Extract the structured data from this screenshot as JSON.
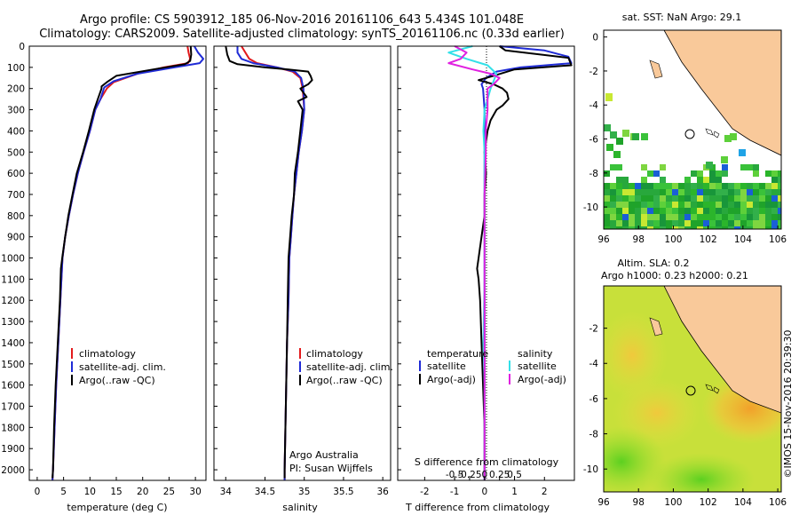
{
  "titles": {
    "line1": "Argo profile: CS 5903912_185 06-Nov-2016 20161106_643 5.434S 101.048E",
    "line2": "Climatology: CARS2009. Satellite-adjusted climatology: synTS_20161106.nc (0.33d earlier)",
    "sst_map": "sat. SST: NaN Argo: 29.1",
    "sla_line1": "Altim. SLA: 0.2",
    "sla_line2": "Argo h1000: 0.23 h2000: 0.21",
    "side_credit": "©IMOS 15-Nov-2016 20:39:30"
  },
  "credits": {
    "line1": "Argo Australia",
    "line2": "PI: Susan Wijffels"
  },
  "colors": {
    "climatology": "#e31a1c",
    "satellite": "#1f2bd6",
    "argo": "#000000",
    "s_satellite": "#33e0e8",
    "s_argo": "#e020e0",
    "land": "#f9c99a"
  },
  "depth_axis": {
    "ylim": [
      0,
      2050
    ],
    "ticks": [
      0,
      100,
      200,
      300,
      400,
      500,
      600,
      700,
      800,
      900,
      1000,
      1100,
      1200,
      1300,
      1400,
      1500,
      1600,
      1700,
      1800,
      1900,
      2000
    ]
  },
  "chart_data": [
    {
      "type": "line",
      "title": "",
      "xlabel": "temperature (deg C)",
      "xlim": [
        -1.5,
        32
      ],
      "xticks": [
        0,
        5,
        10,
        15,
        20,
        25,
        30
      ],
      "series": [
        {
          "name": "climatology",
          "color": "#e31a1c",
          "points": [
            [
              28.5,
              0
            ],
            [
              28.7,
              30
            ],
            [
              29.0,
              60
            ],
            [
              28.6,
              80
            ],
            [
              24.0,
              100
            ],
            [
              19.0,
              130
            ],
            [
              14.5,
              170
            ],
            [
              13.2,
              200
            ],
            [
              12.0,
              250
            ],
            [
              11.0,
              300
            ],
            [
              10.0,
              400
            ],
            [
              8.8,
              500
            ],
            [
              7.7,
              600
            ],
            [
              6.8,
              700
            ],
            [
              6.0,
              800
            ],
            [
              5.3,
              900
            ],
            [
              4.8,
              1000
            ],
            [
              4.4,
              1200
            ],
            [
              4.0,
              1400
            ],
            [
              3.6,
              1600
            ],
            [
              3.3,
              1800
            ],
            [
              3.0,
              2000
            ],
            [
              2.9,
              2050
            ]
          ]
        },
        {
          "name": "satellite-adj. clim.",
          "color": "#1f2bd6",
          "points": [
            [
              29.8,
              0
            ],
            [
              30.5,
              30
            ],
            [
              31.5,
              60
            ],
            [
              30.8,
              80
            ],
            [
              26.0,
              100
            ],
            [
              19.0,
              130
            ],
            [
              14.5,
              165
            ],
            [
              12.7,
              195
            ],
            [
              12.0,
              250
            ],
            [
              11.0,
              300
            ],
            [
              10.0,
              400
            ],
            [
              8.8,
              500
            ],
            [
              7.7,
              600
            ],
            [
              6.8,
              700
            ],
            [
              6.0,
              800
            ],
            [
              5.3,
              900
            ],
            [
              4.8,
              1000
            ],
            [
              4.4,
              1200
            ],
            [
              4.0,
              1400
            ],
            [
              3.6,
              1600
            ],
            [
              3.3,
              1800
            ],
            [
              3.0,
              2000
            ],
            [
              2.9,
              2050
            ]
          ]
        },
        {
          "name": "Argo(..raw -QC)",
          "color": "#000000",
          "points": [
            [
              29.1,
              0
            ],
            [
              29.2,
              40
            ],
            [
              29.0,
              70
            ],
            [
              28.0,
              85
            ],
            [
              22.0,
              110
            ],
            [
              15.0,
              140
            ],
            [
              13.2,
              170
            ],
            [
              12.2,
              190
            ],
            [
              12.2,
              200
            ],
            [
              11.5,
              250
            ],
            [
              10.8,
              300
            ],
            [
              9.8,
              400
            ],
            [
              8.7,
              500
            ],
            [
              7.5,
              600
            ],
            [
              6.7,
              700
            ],
            [
              5.9,
              800
            ],
            [
              5.3,
              900
            ],
            [
              4.8,
              990
            ],
            [
              4.5,
              1050
            ],
            [
              4.3,
              1200
            ],
            [
              3.9,
              1400
            ],
            [
              3.5,
              1600
            ],
            [
              3.2,
              1800
            ],
            [
              3.0,
              2000
            ],
            [
              2.9,
              2040
            ]
          ]
        }
      ]
    },
    {
      "type": "line",
      "title": "",
      "xlabel": "salinity",
      "xlim": [
        33.85,
        36.1
      ],
      "xticks": [
        34,
        34.5,
        35,
        35.5,
        36
      ],
      "series": [
        {
          "name": "climatology",
          "color": "#e31a1c",
          "points": [
            [
              34.2,
              0
            ],
            [
              34.25,
              30
            ],
            [
              34.3,
              60
            ],
            [
              34.4,
              80
            ],
            [
              34.65,
              100
            ],
            [
              34.85,
              120
            ],
            [
              34.95,
              150
            ],
            [
              34.98,
              200
            ],
            [
              35.0,
              300
            ],
            [
              34.97,
              400
            ],
            [
              34.93,
              500
            ],
            [
              34.9,
              600
            ],
            [
              34.87,
              700
            ],
            [
              34.85,
              800
            ],
            [
              34.83,
              900
            ],
            [
              34.81,
              1000
            ],
            [
              34.8,
              1200
            ],
            [
              34.78,
              1400
            ],
            [
              34.77,
              1600
            ],
            [
              34.76,
              1800
            ],
            [
              34.75,
              2000
            ],
            [
              34.75,
              2050
            ]
          ]
        },
        {
          "name": "satellite-adj. clim.",
          "color": "#1f2bd6",
          "points": [
            [
              34.15,
              0
            ],
            [
              34.15,
              30
            ],
            [
              34.2,
              60
            ],
            [
              34.35,
              80
            ],
            [
              34.65,
              100
            ],
            [
              34.88,
              120
            ],
            [
              34.96,
              150
            ],
            [
              34.99,
              200
            ],
            [
              35.0,
              300
            ],
            [
              34.97,
              400
            ],
            [
              34.93,
              500
            ],
            [
              34.9,
              600
            ],
            [
              34.87,
              700
            ],
            [
              34.85,
              800
            ],
            [
              34.83,
              900
            ],
            [
              34.81,
              1000
            ],
            [
              34.8,
              1200
            ],
            [
              34.78,
              1400
            ],
            [
              34.77,
              1600
            ],
            [
              34.76,
              1800
            ],
            [
              34.75,
              2000
            ],
            [
              34.75,
              2050
            ]
          ]
        },
        {
          "name": "Argo(..raw -QC)",
          "color": "#000000",
          "points": [
            [
              34.0,
              0
            ],
            [
              34.02,
              40
            ],
            [
              34.05,
              70
            ],
            [
              34.15,
              85
            ],
            [
              34.5,
              100
            ],
            [
              34.8,
              110
            ],
            [
              35.05,
              120
            ],
            [
              35.08,
              140
            ],
            [
              35.1,
              160
            ],
            [
              35.05,
              180
            ],
            [
              34.95,
              200
            ],
            [
              35.03,
              240
            ],
            [
              34.92,
              260
            ],
            [
              34.98,
              300
            ],
            [
              34.95,
              400
            ],
            [
              34.92,
              500
            ],
            [
              34.88,
              600
            ],
            [
              34.87,
              700
            ],
            [
              34.84,
              800
            ],
            [
              34.82,
              900
            ],
            [
              34.8,
              1000
            ],
            [
              34.79,
              1200
            ],
            [
              34.78,
              1400
            ],
            [
              34.77,
              1600
            ],
            [
              34.76,
              1800
            ],
            [
              34.75,
              2000
            ],
            [
              34.75,
              2040
            ]
          ]
        }
      ]
    },
    {
      "type": "line",
      "title": "",
      "xlabel": "T difference from climatology",
      "xlim": [
        -2.9,
        3.0
      ],
      "xticks": [
        -2,
        -1,
        0,
        1,
        2
      ],
      "s_label": "S difference from climatology",
      "s_xticks": [
        -0.5,
        -0.25,
        0,
        0.25,
        0.5
      ],
      "legend_temperature": "temperature",
      "legend_salinity": "salinity",
      "series": [
        {
          "name": "satellite",
          "color": "#1f2bd6",
          "kind": "T",
          "points": [
            [
              0.5,
              0
            ],
            [
              2.0,
              20
            ],
            [
              2.8,
              50
            ],
            [
              2.9,
              80
            ],
            [
              1.2,
              100
            ],
            [
              0.4,
              120
            ],
            [
              0.05,
              150
            ],
            [
              -0.1,
              180
            ],
            [
              -0.05,
              200
            ],
            [
              0,
              300
            ],
            [
              0,
              500
            ],
            [
              0,
              800
            ],
            [
              0,
              1000
            ],
            [
              0,
              1500
            ],
            [
              0,
              2000
            ],
            [
              0,
              2050
            ]
          ]
        },
        {
          "name": "Argo(-adj)",
          "color": "#000000",
          "kind": "T",
          "points": [
            [
              0.5,
              0
            ],
            [
              0.7,
              20
            ],
            [
              2.8,
              55
            ],
            [
              2.9,
              90
            ],
            [
              1.0,
              110
            ],
            [
              0.3,
              140
            ],
            [
              -0.2,
              160
            ],
            [
              0.3,
              180
            ],
            [
              0.6,
              200
            ],
            [
              0.75,
              220
            ],
            [
              0.8,
              250
            ],
            [
              0.6,
              280
            ],
            [
              0.4,
              300
            ],
            [
              0.2,
              350
            ],
            [
              0.1,
              400
            ],
            [
              0,
              500
            ],
            [
              0.05,
              600
            ],
            [
              0,
              700
            ],
            [
              0,
              800
            ],
            [
              -0.1,
              900
            ],
            [
              -0.2,
              1000
            ],
            [
              -0.25,
              1050
            ],
            [
              -0.2,
              1100
            ],
            [
              -0.15,
              1200
            ],
            [
              -0.1,
              1400
            ],
            [
              -0.05,
              1600
            ],
            [
              0,
              1800
            ],
            [
              0,
              2000
            ],
            [
              0,
              2040
            ]
          ]
        },
        {
          "name": "satellite",
          "color": "#33e0e8",
          "kind": "S",
          "points": [
            [
              -0.2,
              0
            ],
            [
              -0.6,
              30
            ],
            [
              -0.3,
              60
            ],
            [
              0.05,
              90
            ],
            [
              0.2,
              130
            ],
            [
              0.1,
              200
            ],
            [
              0,
              300
            ],
            [
              -0.02,
              400
            ],
            [
              0,
              500
            ],
            [
              0,
              700
            ],
            [
              0,
              900
            ],
            [
              0,
              1100
            ],
            [
              -0.02,
              1400
            ],
            [
              0,
              1600
            ],
            [
              0,
              1800
            ],
            [
              0,
              2000
            ],
            [
              0,
              2050
            ]
          ]
        },
        {
          "name": "Argo(-adj)",
          "color": "#e020e0",
          "kind": "S",
          "points": [
            [
              -0.5,
              0
            ],
            [
              -0.3,
              30
            ],
            [
              -0.4,
              60
            ],
            [
              -0.6,
              80
            ],
            [
              -0.2,
              110
            ],
            [
              0.1,
              130
            ],
            [
              0.25,
              150
            ],
            [
              0.15,
              180
            ],
            [
              0.05,
              200
            ],
            [
              0.05,
              300
            ],
            [
              0.02,
              400
            ],
            [
              0.02,
              500
            ],
            [
              0,
              700
            ],
            [
              0,
              900
            ],
            [
              0,
              1000
            ],
            [
              0,
              1200
            ],
            [
              0,
              1400
            ],
            [
              0,
              1600
            ],
            [
              0,
              1800
            ],
            [
              0,
              2000
            ],
            [
              0,
              2050
            ]
          ]
        }
      ]
    },
    {
      "type": "heatmap",
      "title": "sat. SST: NaN Argo: 29.1",
      "xlim": [
        96,
        106.2
      ],
      "ylim": [
        -11.3,
        0.4
      ],
      "xticks": [
        96,
        98,
        100,
        102,
        104,
        106
      ],
      "yticks": [
        0,
        -2,
        -4,
        -6,
        -8,
        -10
      ],
      "argo_position": [
        101.05,
        -5.43
      ]
    },
    {
      "type": "heatmap",
      "title": "Altim. SLA: 0.2",
      "xlim": [
        96,
        106.2
      ],
      "ylim": [
        -11.3,
        0.4
      ],
      "xticks": [
        96,
        98,
        100,
        102,
        104,
        106
      ],
      "yticks": [
        -2,
        -4,
        -6,
        -8,
        -10
      ],
      "argo_position": [
        101.05,
        -5.43
      ]
    }
  ]
}
